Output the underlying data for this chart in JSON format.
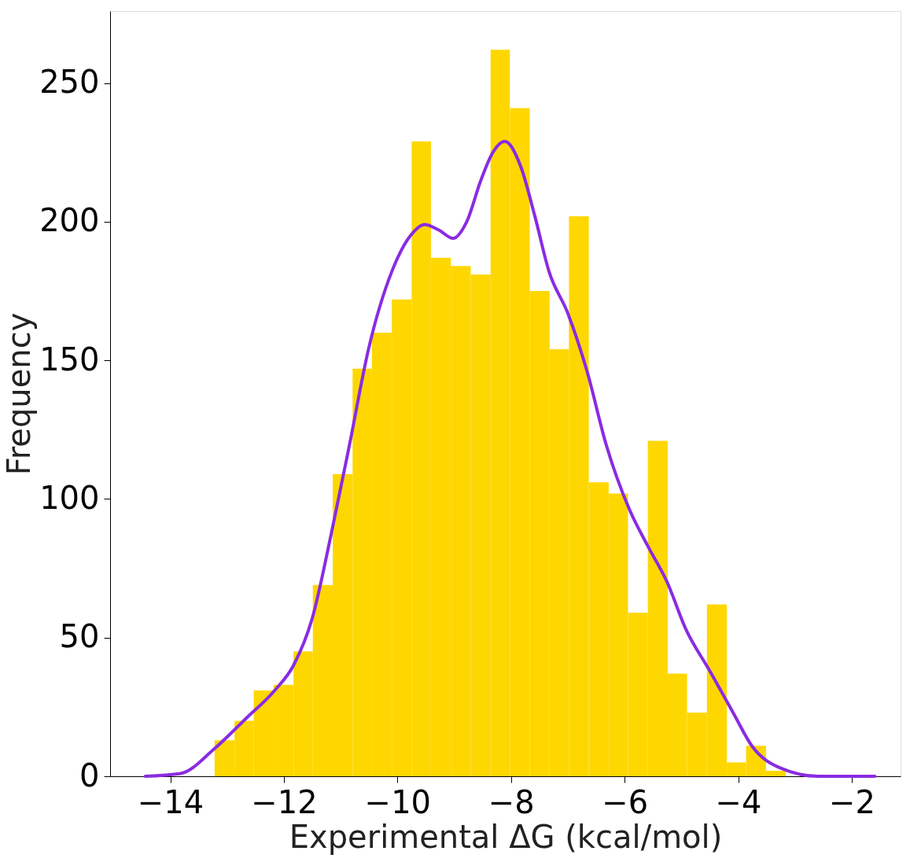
{
  "chart_data": {
    "type": "histogram",
    "xlabel": "Experimental ΔG (kcal/mol)",
    "ylabel": "Frequency",
    "bins": [
      -13.22,
      -12.87,
      -12.53,
      -12.18,
      -11.83,
      -11.49,
      -11.14,
      -10.79,
      -10.45,
      -10.1,
      -9.75,
      -9.41,
      -9.06,
      -8.71,
      -8.36,
      -8.02,
      -7.67,
      -7.32,
      -6.98,
      -6.63,
      -6.28,
      -5.94,
      -5.59,
      -5.24,
      -4.9,
      -4.55,
      -4.2,
      -3.86,
      -3.51,
      -3.16
    ],
    "values": [
      13,
      20,
      31,
      33,
      45,
      69,
      109,
      147,
      160,
      172,
      229,
      187,
      184,
      181,
      262,
      241,
      175,
      154,
      202,
      106,
      102,
      59,
      121,
      37,
      23,
      62,
      5,
      11,
      2
    ],
    "color": "#ffd700",
    "series": [
      {
        "type": "line",
        "color": "#8a2be2",
        "x": [
          -14.44,
          -13.82,
          -13.22,
          -12.66,
          -12.16,
          -11.83,
          -11.5,
          -11.17,
          -10.84,
          -10.51,
          -10.1,
          -9.77,
          -9.52,
          -9.27,
          -9.02,
          -8.78,
          -8.53,
          -8.32,
          -8.11,
          -7.83,
          -7.58,
          -7.33,
          -7.0,
          -6.66,
          -6.33,
          -5.91,
          -5.59,
          -5.25,
          -4.92,
          -4.5,
          -4.09,
          -3.76,
          -3.26,
          -2.59,
          -1.59
        ],
        "values": [
          0,
          1,
          10,
          21,
          31,
          40,
          57,
          87,
          120,
          154,
          182,
          195,
          199,
          197,
          194,
          200,
          215,
          225,
          229,
          220,
          202,
          182,
          167,
          146,
          120,
          96,
          83,
          70,
          53,
          38,
          23,
          11,
          3,
          0,
          0
        ]
      }
    ],
    "xlim": [
      -15.06,
      -1.14
    ],
    "xticks": [
      -14,
      -12,
      -10,
      -8,
      -6,
      -4,
      -2
    ],
    "ylim": [
      0,
      276
    ],
    "yticks": [
      0,
      50,
      100,
      150,
      200,
      250
    ],
    "grid": false
  }
}
